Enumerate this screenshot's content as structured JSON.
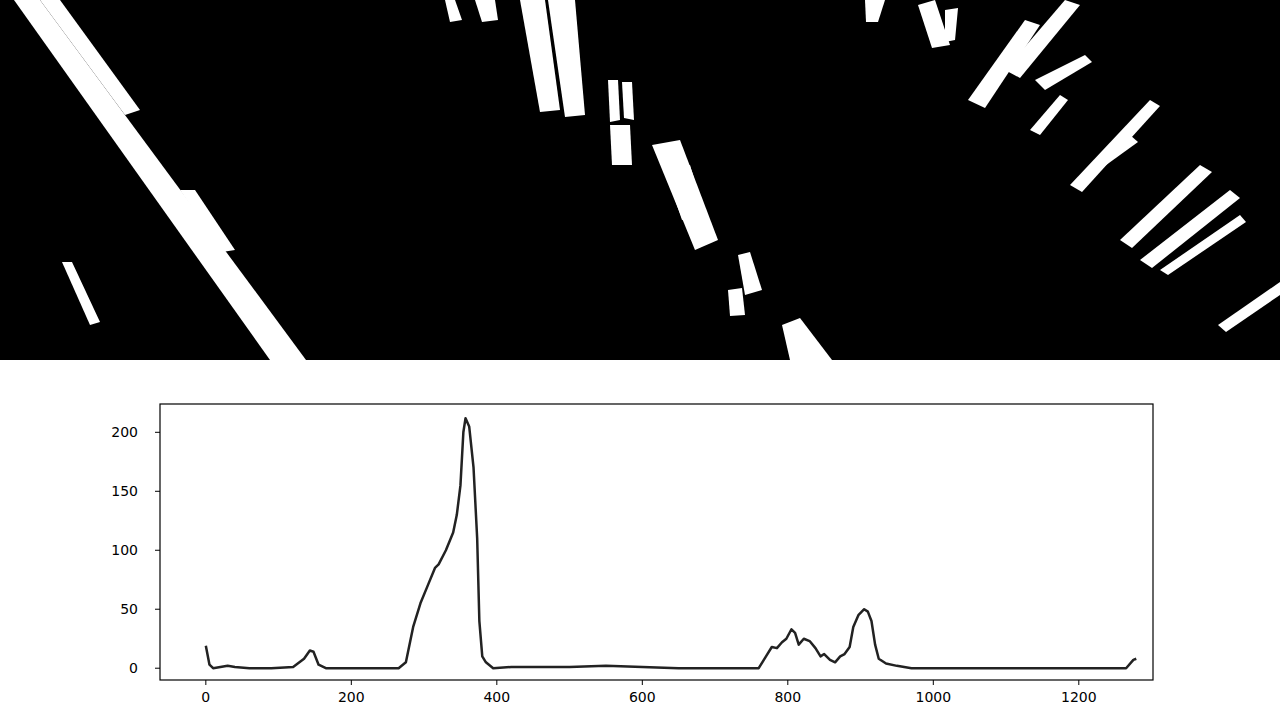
{
  "chart_data": {
    "type": "line",
    "color": "#222222",
    "x": [
      0,
      5,
      10,
      30,
      40,
      60,
      90,
      120,
      135,
      143,
      148,
      155,
      165,
      200,
      265,
      275,
      285,
      295,
      305,
      315,
      320,
      330,
      340,
      345,
      350,
      354,
      357,
      362,
      368,
      373,
      376,
      380,
      385,
      395,
      420,
      460,
      500,
      550,
      600,
      650,
      700,
      760,
      770,
      778,
      785,
      792,
      798,
      805,
      810,
      815,
      822,
      830,
      838,
      845,
      850,
      858,
      865,
      872,
      878,
      885,
      890,
      897,
      905,
      910,
      915,
      920,
      925,
      935,
      950,
      970,
      1000,
      1100,
      1200,
      1265,
      1275,
      1279
    ],
    "values": [
      19,
      3,
      0,
      2,
      1,
      0,
      0,
      1,
      8,
      15,
      14,
      3,
      0,
      0,
      0,
      5,
      35,
      55,
      70,
      85,
      88,
      100,
      115,
      130,
      155,
      200,
      212,
      205,
      170,
      110,
      40,
      10,
      5,
      0,
      1,
      1,
      1,
      2,
      1,
      0,
      0,
      0,
      10,
      18,
      17,
      22,
      25,
      33,
      30,
      20,
      25,
      23,
      17,
      10,
      12,
      7,
      5,
      10,
      12,
      18,
      35,
      45,
      50,
      48,
      40,
      20,
      8,
      4,
      2,
      0,
      0,
      0,
      0,
      0,
      7,
      8
    ],
    "xlim": [
      -63,
      1302
    ],
    "ylim": [
      -10,
      224
    ],
    "xticks": [
      0,
      200,
      400,
      600,
      800,
      1000,
      1200
    ],
    "yticks": [
      0,
      50,
      100,
      150,
      200
    ],
    "grid": false
  }
}
